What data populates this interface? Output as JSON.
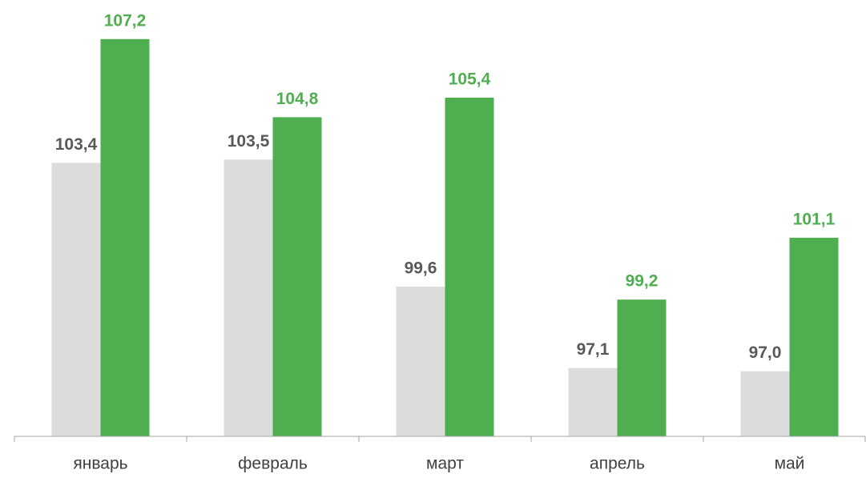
{
  "chart_data": {
    "type": "bar",
    "categories": [
      "январь",
      "февраль",
      "март",
      "апрель",
      "май"
    ],
    "series": [
      {
        "color": "#dcdcdc",
        "label_color": "#595959",
        "values": [
          103.4,
          103.5,
          99.6,
          97.1,
          97.0
        ],
        "value_labels": [
          "103,4",
          "103,5",
          "99,6",
          "97,1",
          "97,0"
        ]
      },
      {
        "color": "#4fae4f",
        "label_color": "#4fae4f",
        "values": [
          107.2,
          104.8,
          105.4,
          99.2,
          101.1
        ],
        "value_labels": [
          "107,2",
          "104,8",
          "105,4",
          "99,2",
          "101,1"
        ]
      }
    ],
    "ylim": [
      95,
      108.4
    ],
    "grid": false
  }
}
